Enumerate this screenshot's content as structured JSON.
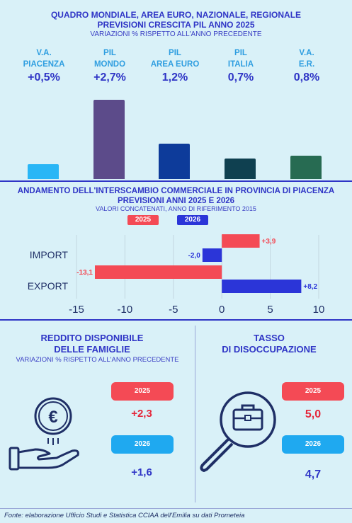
{
  "section1": {
    "title_line1": "QUADRO MONDIALE, AREA EURO, NAZIONALE, REGIONALE",
    "title_line2": "PREVISIONI CRESCITA PIL ANNO 2025",
    "subtitle": "VARIAZIONI % RISPETTO ALL'ANNO PRECEDENTE",
    "columns": [
      {
        "label1": "V.A.",
        "label2": "PIACENZA",
        "value_label": "+0,5%",
        "value": 0.5,
        "color": "#29b6f6"
      },
      {
        "label1": "PIL",
        "label2": "MONDO",
        "value_label": "+2,7%",
        "value": 2.7,
        "color": "#5c4b8a"
      },
      {
        "label1": "PIL",
        "label2": "AREA EURO",
        "value_label": "1,2%",
        "value": 1.2,
        "color": "#0d3b9a"
      },
      {
        "label1": "PIL",
        "label2": "ITALIA",
        "value_label": "0,7%",
        "value": 0.7,
        "color": "#0f4050"
      },
      {
        "label1": "V.A.",
        "label2": "E.R.",
        "value_label": "0,8%",
        "value": 0.8,
        "color": "#276b52"
      }
    ]
  },
  "section2": {
    "title_line1": "ANDAMENTO DELL'INTERSCAMBIO COMMERCIALE IN PROVINCIA DI PIACENZA",
    "title_line2": "PREVISIONI ANNI  2025 E 2026",
    "subtitle": "VALORI CONCATENATI, ANNO DI RIFERIMENTO 2015",
    "legend_2025": "2025",
    "legend_2026": "2026"
  },
  "chart_data": {
    "type": "bar",
    "orientation": "horizontal",
    "categories": [
      "IMPORT",
      "EXPORT"
    ],
    "series": [
      {
        "name": "2025",
        "values": [
          3.9,
          -13.1
        ],
        "labels": [
          "+3,9",
          "-13,1"
        ],
        "color": "#f44a55"
      },
      {
        "name": "2026",
        "values": [
          -2.0,
          8.2
        ],
        "labels": [
          "-2,0",
          "+8,2"
        ],
        "color": "#2b35d8"
      }
    ],
    "xlim": [
      -15,
      10
    ],
    "xticks": [
      "-15",
      "-10",
      "-5",
      "0",
      "5",
      "10"
    ],
    "xtick_values": [
      -15,
      -10,
      -5,
      0,
      5,
      10
    ],
    "grid": true
  },
  "section3": {
    "left": {
      "title_line1": "REDDITO DISPONIBILE",
      "title_line2": "DELLE FAMIGLIE",
      "subtitle": "VARIAZIONI % RISPETTO ALL'ANNO PRECEDENTE",
      "pill_2025": "2025",
      "value_2025": "+2,3",
      "pill_2026": "2026",
      "value_2026": "+1,6"
    },
    "right": {
      "title_line1": "TASSO",
      "title_line2": "DI DISOCCUPAZIONE",
      "pill_2025": "2025",
      "value_2025": "5,0",
      "pill_2026": "2026",
      "value_2026": "4,7"
    },
    "icons": [
      "euro-coin-icon",
      "hand-icon",
      "magnifier-briefcase-icon"
    ]
  },
  "footer": "Fonte: elaborazione Ufficio Studi e Statistica CCIAA dell'Emilia su dati Prometeia",
  "colors": {
    "red": "#f44a55",
    "blue": "#2b35d8",
    "cyan": "#1fa9f0",
    "title_blue": "#2f35c6"
  }
}
